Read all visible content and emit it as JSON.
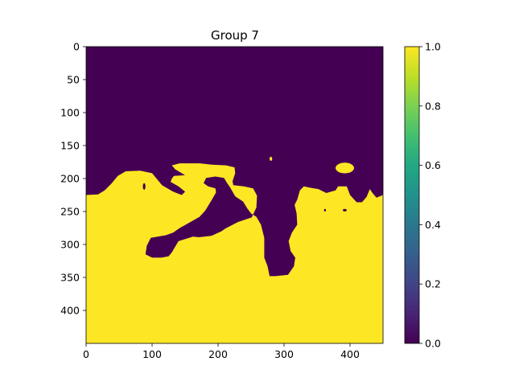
{
  "chart_data": {
    "type": "heatmap",
    "title": "Group 7",
    "colormap": "viridis",
    "colors": {
      "low": "#440154",
      "high": "#fde725"
    },
    "image_size": [
      450,
      450
    ],
    "xlim": [
      0,
      450
    ],
    "ylim": [
      450,
      0
    ],
    "x_ticks": [
      "0",
      "100",
      "200",
      "300",
      "400"
    ],
    "y_ticks": [
      "0",
      "50",
      "100",
      "150",
      "200",
      "250",
      "300",
      "350",
      "400"
    ],
    "colorbar": {
      "range": [
        0.0,
        1.0
      ],
      "ticks": [
        "0.0",
        "0.2",
        "0.4",
        "0.6",
        "0.8",
        "1.0"
      ]
    },
    "values_description": "binary mask: 0 above boundary, 1 below boundary",
    "boundary": [
      [
        0,
        225
      ],
      [
        18,
        224
      ],
      [
        28,
        218
      ],
      [
        38,
        208
      ],
      [
        48,
        196
      ],
      [
        60,
        189
      ],
      [
        82,
        188
      ],
      [
        100,
        192
      ],
      [
        115,
        210
      ],
      [
        132,
        220
      ],
      [
        145,
        225
      ],
      [
        150,
        220
      ],
      [
        140,
        212
      ],
      [
        128,
        205
      ],
      [
        130,
        200
      ],
      [
        133,
        196
      ],
      [
        150,
        195
      ],
      [
        135,
        186
      ],
      [
        130,
        180
      ],
      [
        142,
        177
      ],
      [
        172,
        177
      ],
      [
        190,
        179
      ],
      [
        212,
        180
      ],
      [
        225,
        183
      ],
      [
        226,
        192
      ],
      [
        222,
        204
      ],
      [
        223,
        210
      ],
      [
        239,
        212
      ],
      [
        253,
        215
      ],
      [
        259,
        226
      ],
      [
        258,
        244
      ],
      [
        251,
        259
      ],
      [
        230,
        266
      ],
      [
        211,
        276
      ],
      [
        205,
        280
      ],
      [
        190,
        287
      ],
      [
        171,
        289
      ],
      [
        162,
        288
      ],
      [
        140,
        295
      ],
      [
        130,
        312
      ],
      [
        125,
        318
      ],
      [
        114,
        320
      ],
      [
        100,
        320
      ],
      [
        90,
        315
      ],
      [
        92,
        302
      ],
      [
        98,
        290
      ],
      [
        121,
        286
      ],
      [
        132,
        282
      ],
      [
        142,
        275
      ],
      [
        158,
        266
      ],
      [
        172,
        258
      ],
      [
        181,
        248
      ],
      [
        190,
        233
      ],
      [
        197,
        221
      ],
      [
        196,
        215
      ],
      [
        185,
        212
      ],
      [
        178,
        207
      ],
      [
        182,
        199
      ],
      [
        196,
        197
      ],
      [
        209,
        199
      ],
      [
        213,
        206
      ],
      [
        218,
        213
      ],
      [
        226,
        227
      ],
      [
        238,
        235
      ],
      [
        244,
        245
      ],
      [
        250,
        253
      ],
      [
        258,
        258
      ],
      [
        265,
        270
      ],
      [
        270,
        290
      ],
      [
        270,
        320
      ],
      [
        275,
        333
      ],
      [
        278,
        348
      ],
      [
        287,
        348
      ],
      [
        306,
        346
      ],
      [
        315,
        333
      ],
      [
        317,
        320
      ],
      [
        310,
        310
      ],
      [
        307,
        295
      ],
      [
        312,
        282
      ],
      [
        320,
        270
      ],
      [
        319,
        253
      ],
      [
        316,
        240
      ],
      [
        320,
        232
      ],
      [
        324,
        218
      ],
      [
        330,
        212
      ],
      [
        340,
        214
      ],
      [
        352,
        216
      ],
      [
        364,
        222
      ],
      [
        378,
        218
      ],
      [
        382,
        212
      ],
      [
        395,
        212
      ],
      [
        400,
        225
      ],
      [
        410,
        236
      ],
      [
        418,
        236
      ],
      [
        425,
        228
      ],
      [
        430,
        216
      ],
      [
        434,
        222
      ],
      [
        440,
        229
      ],
      [
        448,
        226
      ],
      [
        450,
        224
      ],
      [
        450,
        450
      ],
      [
        0,
        450
      ]
    ],
    "holes": [
      {
        "cx": 392,
        "cy": 184,
        "rx": 14,
        "ry": 8
      },
      {
        "cx": 280,
        "cy": 170,
        "rx": 2,
        "ry": 3
      }
    ],
    "specks": [
      {
        "cx": 88,
        "cy": 212,
        "rx": 2,
        "ry": 5
      },
      {
        "cx": 362,
        "cy": 248,
        "rx": 1.5,
        "ry": 2
      },
      {
        "cx": 392,
        "cy": 248,
        "rx": 3,
        "ry": 2
      },
      {
        "cx": 216,
        "cy": 247,
        "rx": 2.5,
        "ry": 3
      }
    ]
  }
}
